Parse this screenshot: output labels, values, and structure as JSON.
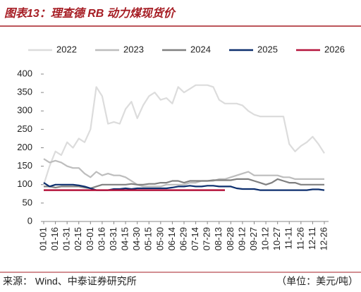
{
  "chart_data": {
    "type": "line",
    "title": "图表13：理查德 RB 动力煤现货价",
    "source": "来源：  Wind、中泰证券研究所",
    "unit_note": "（单位：美元/吨）",
    "categories": [
      "01-01",
      null,
      "01-16",
      null,
      "01-31",
      null,
      "02-15",
      null,
      "03-01",
      null,
      "03-16",
      null,
      "03-31",
      null,
      "04-15",
      null,
      "04-30",
      null,
      "05-15",
      null,
      "05-30",
      null,
      "06-14",
      null,
      "06-29",
      null,
      "07-14",
      null,
      "07-29",
      null,
      "08-13",
      null,
      "08-28",
      null,
      "09-12",
      null,
      "09-27",
      null,
      "10-12",
      null,
      "10-27",
      null,
      "11-11",
      null,
      "11-26",
      null,
      "12-11",
      null,
      "12-26"
    ],
    "series": [
      {
        "name": "2022",
        "color": "#dcdcdc",
        "values": [
          100,
          150,
          190,
          180,
          215,
          200,
          225,
          215,
          250,
          365,
          340,
          265,
          270,
          265,
          305,
          325,
          280,
          315,
          340,
          350,
          330,
          335,
          320,
          365,
          350,
          360,
          370,
          370,
          370,
          365,
          330,
          320,
          320,
          320,
          315,
          300,
          290,
          285,
          285,
          285,
          285,
          285,
          210,
          190,
          205,
          215,
          230,
          210,
          185
        ]
      },
      {
        "name": "2023",
        "color": "#bdbdbd",
        "values": [
          170,
          160,
          165,
          160,
          150,
          145,
          145,
          130,
          120,
          135,
          125,
          130,
          125,
          125,
          120,
          110,
          100,
          95,
          95,
          95,
          95,
          100,
          100,
          100,
          100,
          105,
          105,
          110,
          110,
          110,
          115,
          115,
          120,
          125,
          130,
          135,
          125,
          125,
          125,
          125,
          125,
          120,
          120,
          115,
          115,
          115,
          115,
          115,
          115
        ]
      },
      {
        "name": "2024",
        "color": "#808080",
        "values": [
          95,
          95,
          92,
          95,
          95,
          95,
          95,
          92,
          90,
          95,
          100,
          100,
          100,
          100,
          100,
          102,
          100,
          100,
          102,
          102,
          105,
          105,
          110,
          110,
          105,
          110,
          110,
          110,
          110,
          112,
          112,
          112,
          112,
          115,
          115,
          115,
          110,
          105,
          100,
          105,
          115,
          110,
          105,
          105,
          100,
          100,
          100,
          100,
          100
        ]
      },
      {
        "name": "2025",
        "color": "#0d2f6e",
        "values": [
          105,
          95,
          100,
          100,
          100,
          100,
          98,
          95,
          90,
          85,
          85,
          85,
          88,
          88,
          90,
          88,
          90,
          90,
          90,
          90,
          90,
          90,
          92,
          95,
          95,
          97,
          95,
          95,
          97,
          97,
          95,
          95,
          95,
          90,
          88,
          88,
          88,
          85,
          85,
          85,
          85,
          85,
          85,
          85,
          85,
          85,
          87,
          87,
          85
        ]
      },
      {
        "name": "2026",
        "color": "#b5143c",
        "values": [
          85,
          85,
          85,
          85,
          85,
          85,
          85,
          85,
          85,
          85,
          85,
          85,
          85,
          85,
          85,
          85,
          85,
          85,
          85,
          85,
          85,
          85,
          85,
          85,
          85,
          85,
          85,
          85,
          85,
          85,
          85,
          85,
          null,
          null,
          null,
          null,
          null,
          null,
          null,
          null,
          null,
          null,
          null,
          null,
          null,
          null,
          null,
          null,
          null
        ]
      }
    ],
    "ylim": [
      0,
      400
    ],
    "yticks": [
      0,
      50,
      100,
      150,
      200,
      250,
      300,
      350,
      400
    ],
    "grid": false
  }
}
